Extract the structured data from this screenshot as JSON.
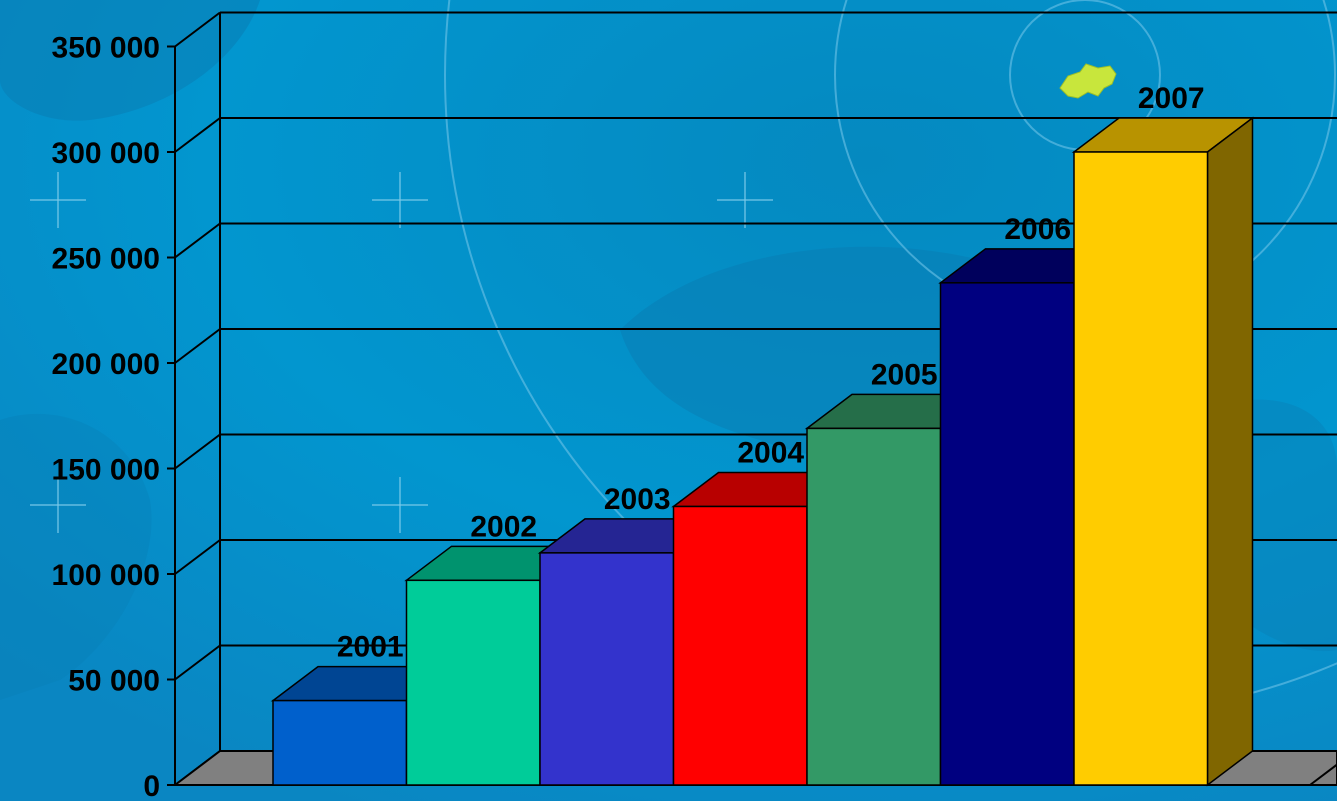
{
  "chart_data": {
    "type": "bar",
    "title": "",
    "xlabel": "",
    "ylabel": "",
    "categories": [
      "2001",
      "2002",
      "2003",
      "2004",
      "2005",
      "2006",
      "2007"
    ],
    "values": [
      40000,
      97000,
      110000,
      132000,
      169000,
      238000,
      300000
    ],
    "ylim": [
      0,
      350000
    ],
    "yticks": [
      0,
      50000,
      100000,
      150000,
      200000,
      250000,
      300000,
      350000
    ],
    "ytick_labels": [
      "0",
      "50 000",
      "100 000",
      "150 000",
      "200 000",
      "250 000",
      "300 000",
      "350 000"
    ],
    "bar_colors": [
      "#0060CC",
      "#00CC99",
      "#3333CC",
      "#FF0000",
      "#339966",
      "#000080",
      "#FFCC00"
    ],
    "grid": true,
    "style": "3d",
    "legend": "none",
    "decoration": "ukraine-map-icon"
  },
  "colors": {
    "background": "#0296CF",
    "background_dark": "#0A6FA5",
    "floor": "#808080"
  }
}
